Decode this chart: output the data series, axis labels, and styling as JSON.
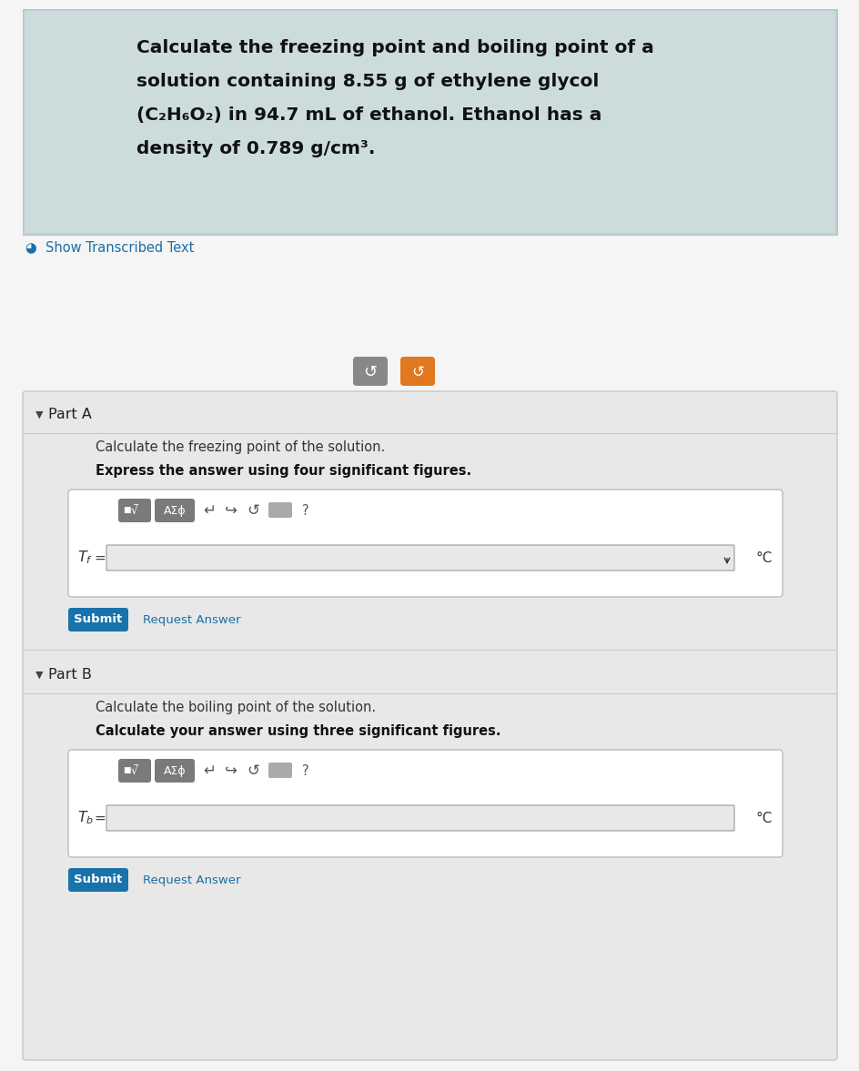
{
  "overall_bg": "#f5f5f5",
  "photo_bg_top": "#b8cacb",
  "photo_bg_bottom": "#d4dfe0",
  "photo_text_color": "#111111",
  "photo_line1": "Calculate the freezing point and boiling point of a",
  "photo_line2": "solution containing 8.55 g of ethylene glycol",
  "photo_line3": "(C₂H₆O₂) in 94.7 mL of ethanol. Ethanol has a",
  "photo_line4": "density of 0.789 g/cm³.",
  "show_text": "Show Transcribed Text",
  "show_text_color": "#1a6fa8",
  "panel_bg": "#e8e8e8",
  "panel_border": "#c8c8c8",
  "part_a_label": "Part A",
  "part_a_desc": "Calculate the freezing point of the solution.",
  "part_a_instr": "Express the answer using four significant figures.",
  "part_b_label": "Part B",
  "part_b_desc": "Calculate the boiling point of the solution.",
  "part_b_instr": "Calculate your answer using three significant figures.",
  "submit_bg": "#1a72aa",
  "submit_text": "Submit",
  "req_ans_text": "Request Answer",
  "req_ans_color": "#1a6fa8",
  "deg_c": "°C",
  "toolbar_gray": "#888888",
  "toolbar_dark": "#777777",
  "icon_gray": "#aaaaaa",
  "icon_text_color": "#555555",
  "input_border": "#bbbbbb",
  "input_bg": "#e8e8e8",
  "gray_btn_color": "#888888",
  "orange_btn_color": "#e07820",
  "white": "#ffffff",
  "sep_color": "#cccccc",
  "header_sep_color": "#c8c8c8"
}
